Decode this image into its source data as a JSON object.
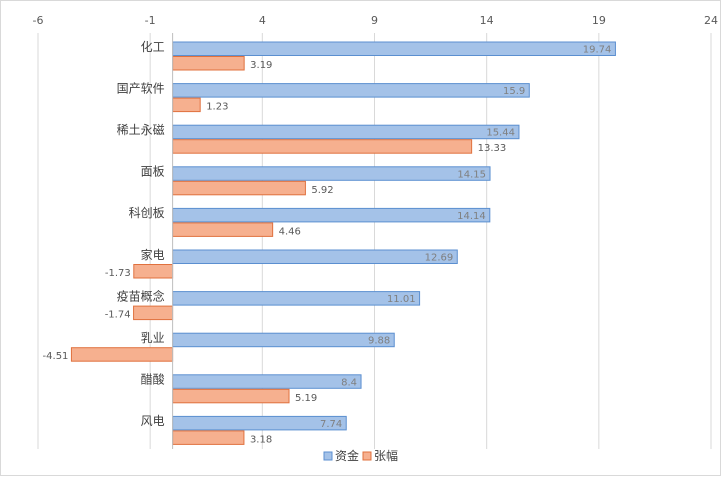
{
  "chart_data": {
    "type": "bar",
    "orientation": "horizontal",
    "categories": [
      "化工",
      "国产软件",
      "稀土永磁",
      "面板",
      "科创板",
      "家电",
      "疫苗概念",
      "乳业",
      "醋酸",
      "风电"
    ],
    "series": [
      {
        "name": "资金",
        "values": [
          19.74,
          15.9,
          15.44,
          14.15,
          14.14,
          12.69,
          11.01,
          9.88,
          8.4,
          7.74
        ],
        "color": "#a4c2e8",
        "border": "#5b8fd0"
      },
      {
        "name": "张幅",
        "values": [
          3.19,
          1.23,
          13.33,
          5.92,
          4.46,
          -1.73,
          -1.74,
          -4.51,
          5.19,
          3.18
        ],
        "color": "#f6b08f",
        "border": "#e0713e"
      }
    ],
    "xlim": [
      -6,
      24
    ],
    "xticks": [
      -6,
      -1,
      4,
      9,
      14,
      19,
      24
    ],
    "grid": true,
    "legend_position": "bottom"
  }
}
